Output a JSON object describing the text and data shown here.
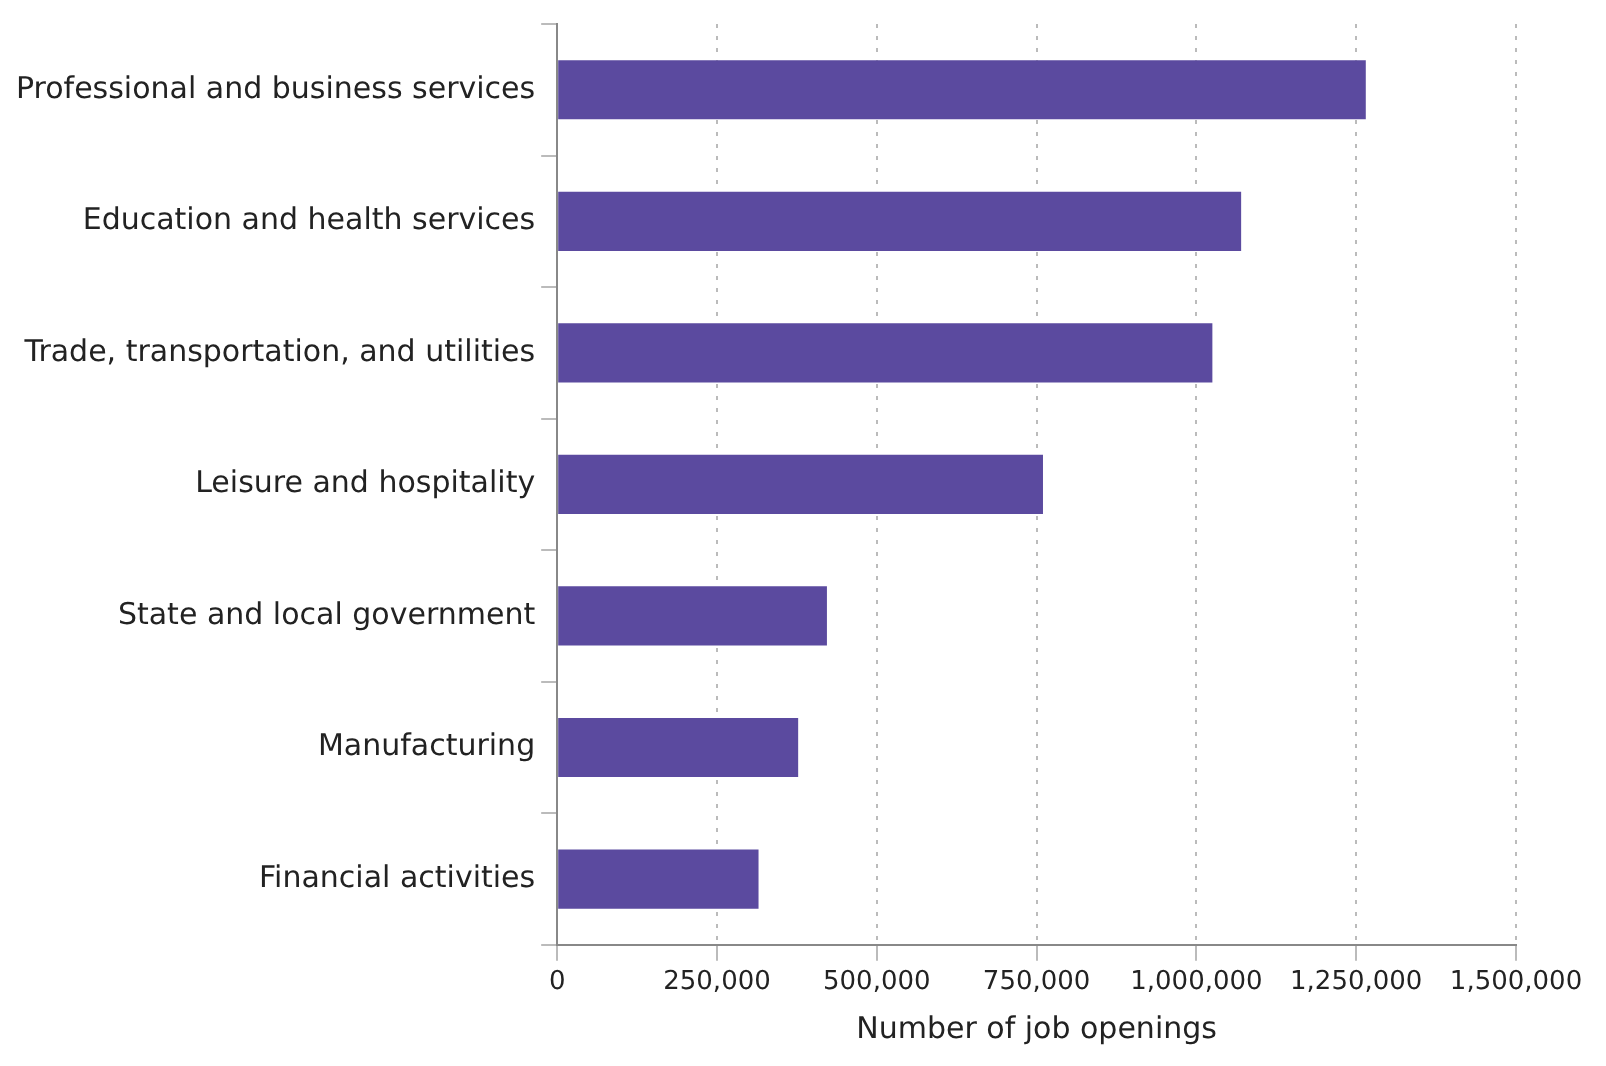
{
  "chart_data": {
    "type": "bar",
    "orientation": "horizontal",
    "xlabel": "Number of job openings",
    "categories": [
      "Professional and business services",
      "Education and health services",
      "Trade, transportation, and utilities",
      "Leisure and hospitality",
      "State and local government",
      "Manufacturing",
      "Financial activities"
    ],
    "values": [
      1265000,
      1070000,
      1025000,
      760000,
      422000,
      377000,
      315000
    ],
    "color": "#5b4a9f",
    "xlim": [
      0,
      1500000
    ],
    "xticks": [
      0,
      {
        "value": 250000,
        "label": "250,000"
      },
      {
        "value": 500000,
        "label": "500,000"
      },
      {
        "value": 750000,
        "label": "750,000"
      },
      {
        "value": 1000000,
        "label": "1,000,000"
      },
      {
        "value": 1250000,
        "label": "1,250,000"
      },
      {
        "value": 1500000,
        "label": "1,500,000"
      }
    ],
    "grid": "x",
    "legend": false
  }
}
